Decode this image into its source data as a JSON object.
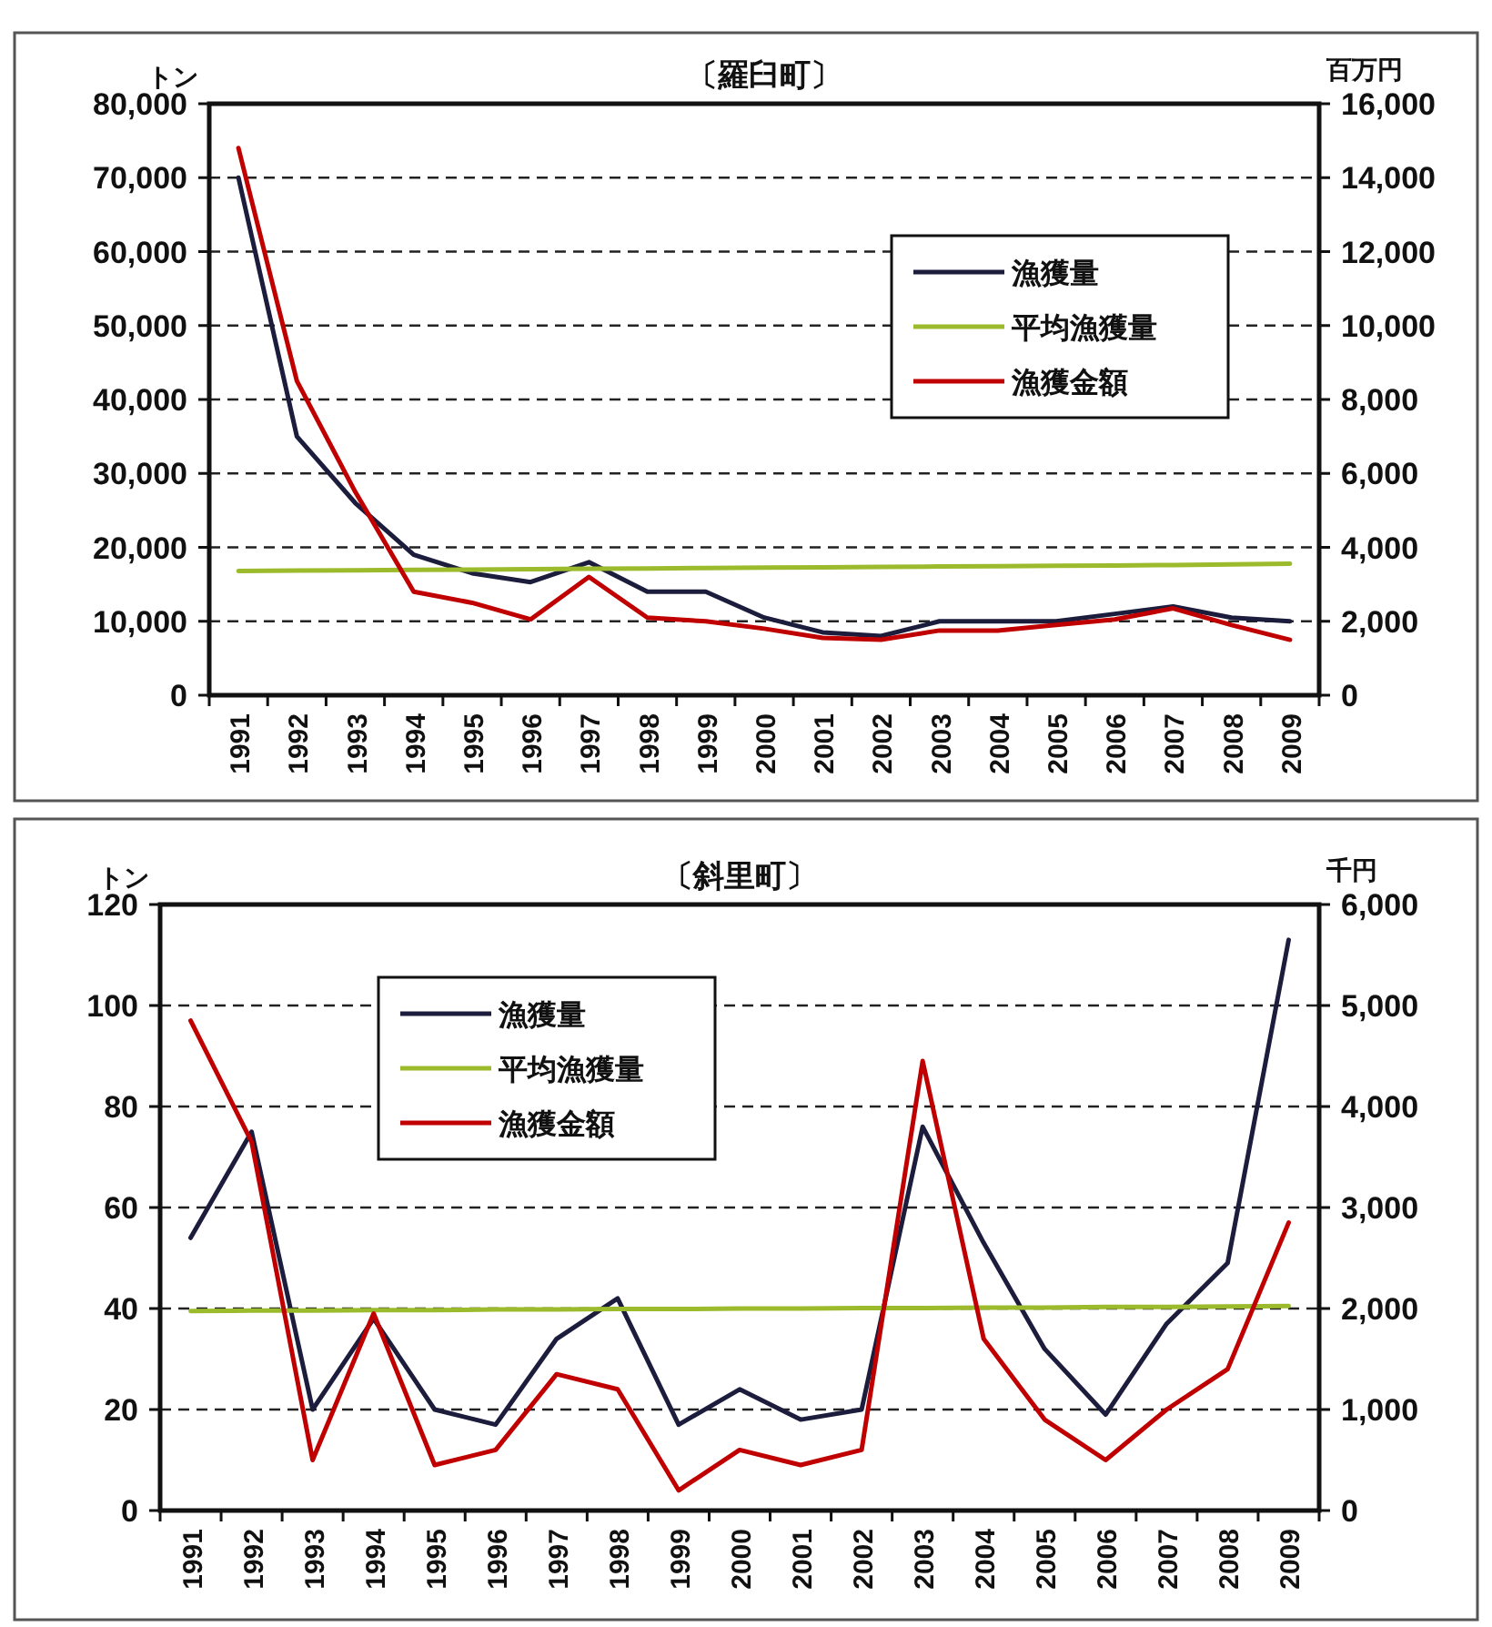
{
  "chart_data": [
    {
      "type": "line",
      "title": "〔羅臼町〕",
      "ylabel": "トン",
      "y2label": "百万円",
      "categories": [
        "1991",
        "1992",
        "1993",
        "1994",
        "1995",
        "1996",
        "1997",
        "1998",
        "1999",
        "2000",
        "2001",
        "2002",
        "2003",
        "2004",
        "2005",
        "2006",
        "2007",
        "2008",
        "2009"
      ],
      "series": [
        {
          "name": "漁獲量",
          "color": "#1c1c3c",
          "values": [
            70000,
            35000,
            26000,
            19000,
            16500,
            15300,
            18000,
            14000,
            14000,
            10500,
            8500,
            8000,
            10000,
            10000,
            10000,
            11000,
            12000,
            10500,
            10000
          ]
        },
        {
          "name": "平均漁獲量",
          "color": "#9bbb2c",
          "values": [
            16800,
            16850,
            16900,
            16950,
            17000,
            17050,
            17100,
            17150,
            17200,
            17250,
            17300,
            17350,
            17400,
            17450,
            17500,
            17550,
            17600,
            17700,
            17800
          ]
        },
        {
          "name": "漁獲金額",
          "color": "#c00000",
          "axis": "y2",
          "values": [
            14800,
            8500,
            5500,
            2800,
            2500,
            2050,
            3200,
            2100,
            2000,
            1800,
            1550,
            1500,
            1750,
            1750,
            1900,
            2050,
            2350,
            1900,
            1500
          ]
        }
      ],
      "ylim": [
        0,
        80000
      ],
      "yticks": [
        {
          "value": 0,
          "label": "0"
        },
        {
          "value": 10000,
          "label": "10,000"
        },
        {
          "value": 20000,
          "label": "20,000"
        },
        {
          "value": 30000,
          "label": "30,000"
        },
        {
          "value": 40000,
          "label": "40,000"
        },
        {
          "value": 50000,
          "label": "50,000"
        },
        {
          "value": 60000,
          "label": "60,000"
        },
        {
          "value": 70000,
          "label": "70,000"
        },
        {
          "value": 80000,
          "label": "80,000"
        }
      ],
      "y2lim": [
        0,
        16000
      ],
      "y2ticks": [
        {
          "value": 0,
          "label": "0"
        },
        {
          "value": 2000,
          "label": "2,000"
        },
        {
          "value": 4000,
          "label": "4,000"
        },
        {
          "value": 6000,
          "label": "6,000"
        },
        {
          "value": 8000,
          "label": "8,000"
        },
        {
          "value": 10000,
          "label": "10,000"
        },
        {
          "value": 12000,
          "label": "12,000"
        },
        {
          "value": 14000,
          "label": "14,000"
        },
        {
          "value": 16000,
          "label": "16,000"
        }
      ],
      "grid": "y",
      "legend": "right"
    },
    {
      "type": "line",
      "title": "〔斜里町〕",
      "ylabel": "トン",
      "y2label": "千円",
      "categories": [
        "1991",
        "1992",
        "1993",
        "1994",
        "1995",
        "1996",
        "1997",
        "1998",
        "1999",
        "2000",
        "2001",
        "2002",
        "2003",
        "2004",
        "2005",
        "2006",
        "2007",
        "2008",
        "2009"
      ],
      "series": [
        {
          "name": "漁獲量",
          "color": "#1c1c3c",
          "values": [
            54,
            75,
            20,
            38,
            20,
            17,
            34,
            42,
            17,
            24,
            18,
            20,
            76,
            53,
            32,
            19,
            37,
            49,
            113
          ]
        },
        {
          "name": "平均漁獲量",
          "color": "#9bbb2c",
          "values": [
            39.5,
            39.6,
            39.6,
            39.7,
            39.7,
            39.8,
            39.8,
            39.9,
            39.9,
            40,
            40,
            40.1,
            40.1,
            40.2,
            40.2,
            40.3,
            40.3,
            40.4,
            40.5
          ]
        },
        {
          "name": "漁獲金額",
          "color": "#c00000",
          "axis": "y2",
          "values": [
            4850,
            3650,
            500,
            1950,
            450,
            600,
            1350,
            1200,
            200,
            600,
            450,
            600,
            4450,
            1700,
            900,
            500,
            1000,
            1400,
            2850
          ]
        }
      ],
      "ylim": [
        0,
        120
      ],
      "yticks": [
        0,
        20,
        40,
        60,
        80,
        100,
        120
      ],
      "y2lim": [
        0,
        6000
      ],
      "y2ticks": [
        {
          "value": 0,
          "label": "0"
        },
        {
          "value": 1000,
          "label": "1,000"
        },
        {
          "value": 2000,
          "label": "2,000"
        },
        {
          "value": 3000,
          "label": "3,000"
        },
        {
          "value": 4000,
          "label": "4,000"
        },
        {
          "value": 5000,
          "label": "5,000"
        },
        {
          "value": 6000,
          "label": "6,000"
        }
      ],
      "grid": "y",
      "legend": "top left"
    }
  ]
}
